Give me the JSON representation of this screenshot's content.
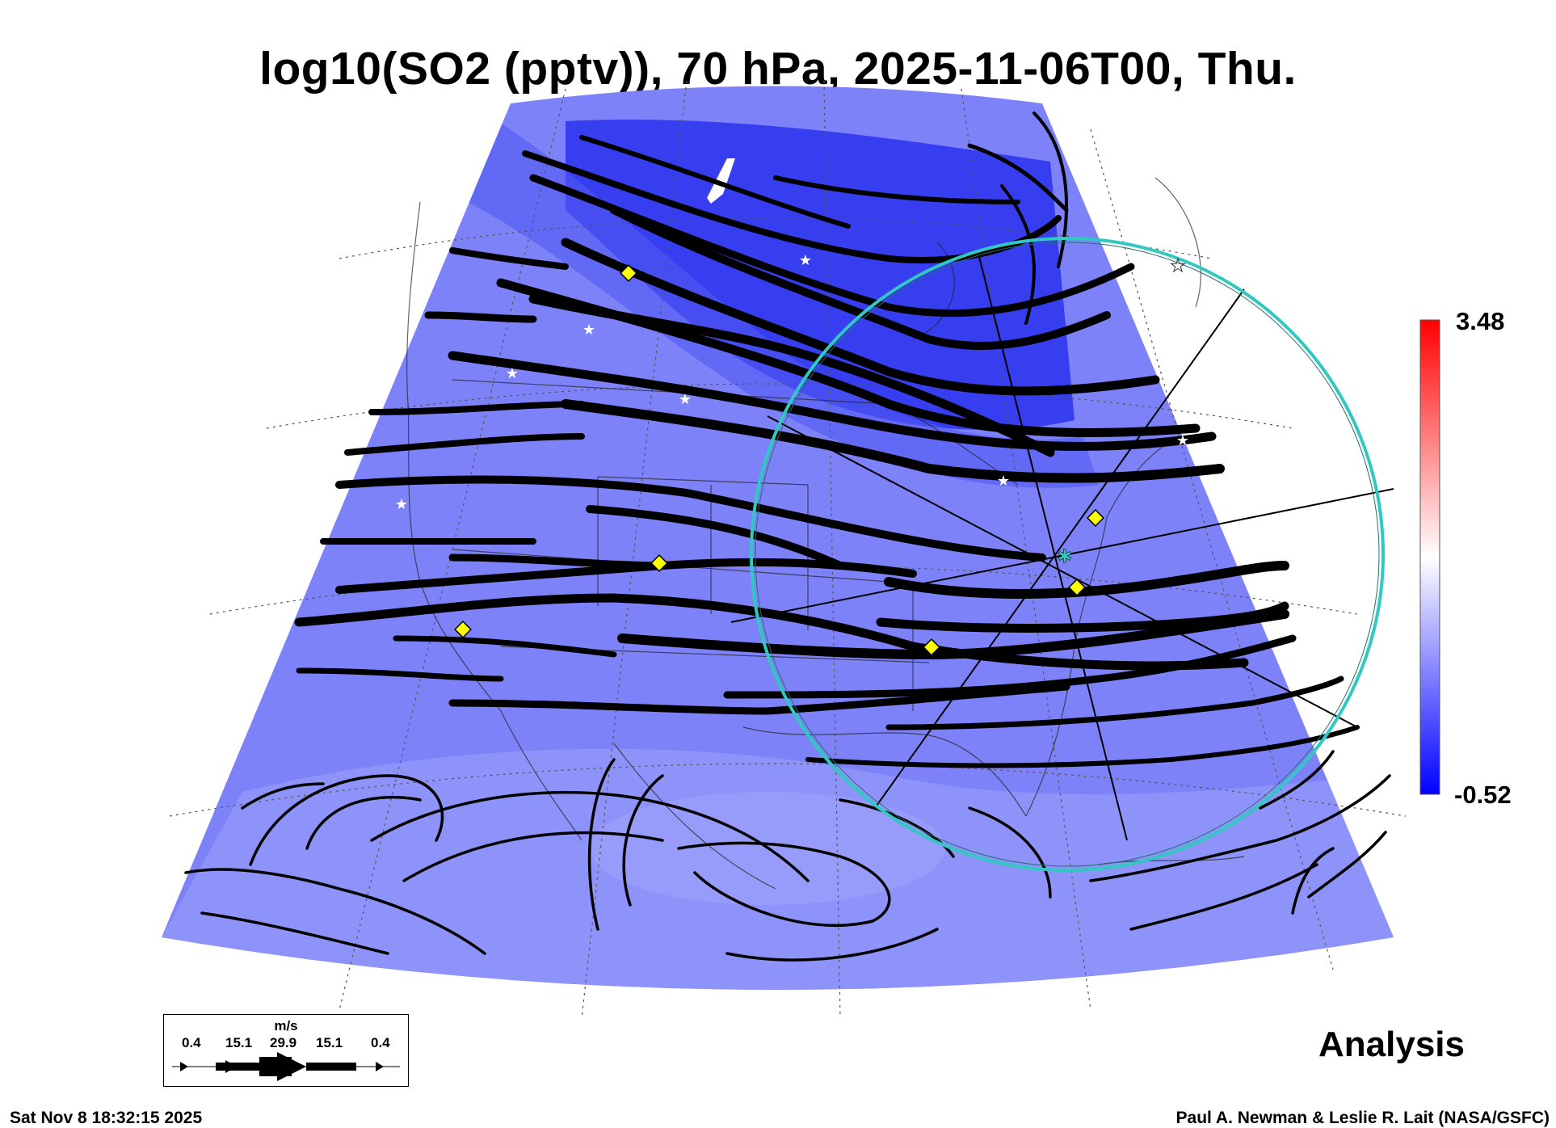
{
  "title": "log10(SO2 (pptv)), 70 hPa, 2025-11-06T00, Thu.",
  "colorbar": {
    "max_label": "3.48",
    "min_label": "-0.52",
    "colors": [
      "#0000ff",
      "#ffffff",
      "#ff0000"
    ]
  },
  "field_colors": {
    "background": "#7d82f8",
    "dark_band": "#2a32ee",
    "medium_band": "#5058f2",
    "light_region": "#9da2fa"
  },
  "flight_circle_color": "#30c8c0",
  "marker_colors": {
    "diamond": "#ffff00",
    "star": "#ffffff",
    "center": "#30c8c0"
  },
  "wind_legend": {
    "unit": "m/s",
    "values": [
      "0.4",
      "15.1",
      "29.9",
      "15.1",
      "0.4"
    ]
  },
  "analysis_label": "Analysis",
  "timestamp": "Sat Nov  8 18:32:15 2025",
  "credit": "Paul A. Newman & Leslie R. Lait (NASA/GSFC)"
}
